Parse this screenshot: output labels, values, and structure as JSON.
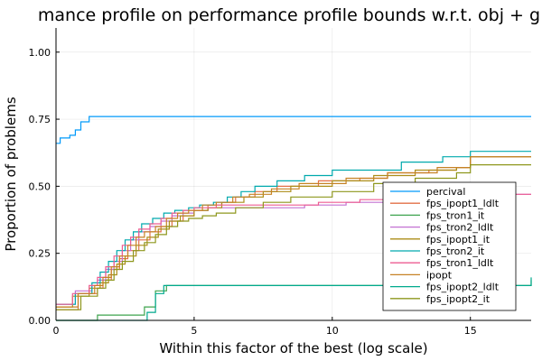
{
  "chart_data": {
    "type": "line",
    "step": true,
    "title": "mance profile on performance profile bounds w.r.t. obj + g",
    "xlabel": "Within this factor of the best (log scale)",
    "ylabel": "Proportion of problems",
    "xlim": [
      0,
      17.2
    ],
    "ylim": [
      0,
      1.09
    ],
    "x_ticks": [
      0,
      5,
      10,
      15
    ],
    "x_tick_labels": [
      "0",
      "5",
      "10",
      "15"
    ],
    "y_ticks": [
      0,
      0.25,
      0.5,
      0.75,
      1.0
    ],
    "y_tick_labels": [
      "0.00",
      "0.25",
      "0.50",
      "0.75",
      "1.00"
    ],
    "grid": true,
    "legend_position": "bottom-right",
    "series": [
      {
        "name": "percival",
        "color": "#009AFA",
        "points": [
          [
            0,
            0.66
          ],
          [
            0.15,
            0.68
          ],
          [
            0.5,
            0.69
          ],
          [
            0.7,
            0.71
          ],
          [
            0.9,
            0.74
          ],
          [
            1.2,
            0.76
          ],
          [
            17.2,
            0.76
          ]
        ]
      },
      {
        "name": "fps_ipopt1_ldlt",
        "color": "#E36F47",
        "points": [
          [
            0,
            0.04
          ],
          [
            0.8,
            0.1
          ],
          [
            1.5,
            0.12
          ],
          [
            1.7,
            0.15
          ],
          [
            2.0,
            0.19
          ],
          [
            2.3,
            0.23
          ],
          [
            2.6,
            0.26
          ],
          [
            3.0,
            0.3
          ],
          [
            3.4,
            0.33
          ],
          [
            3.8,
            0.35
          ],
          [
            4.2,
            0.37
          ],
          [
            4.6,
            0.39
          ],
          [
            5.0,
            0.41
          ],
          [
            5.5,
            0.43
          ],
          [
            6.0,
            0.44
          ],
          [
            6.5,
            0.46
          ],
          [
            7.2,
            0.48
          ],
          [
            8.0,
            0.5
          ],
          [
            9.5,
            0.52
          ],
          [
            11.0,
            0.53
          ],
          [
            12.0,
            0.55
          ],
          [
            13.5,
            0.56
          ],
          [
            14.5,
            0.57
          ],
          [
            15.0,
            0.61
          ],
          [
            17.2,
            0.61
          ]
        ]
      },
      {
        "name": "fps_tron1_it",
        "color": "#3EA44E",
        "points": [
          [
            0,
            0
          ],
          [
            1.5,
            0.02
          ],
          [
            3.2,
            0.05
          ],
          [
            3.6,
            0.11
          ],
          [
            4.0,
            0.13
          ],
          [
            17.2,
            0.15
          ]
        ]
      },
      {
        "name": "fps_tron2_ldlt",
        "color": "#C371D2",
        "points": [
          [
            0,
            0.06
          ],
          [
            0.7,
            0.11
          ],
          [
            1.3,
            0.13
          ],
          [
            1.5,
            0.15
          ],
          [
            1.8,
            0.19
          ],
          [
            2.1,
            0.22
          ],
          [
            2.4,
            0.26
          ],
          [
            2.7,
            0.3
          ],
          [
            3.0,
            0.33
          ],
          [
            3.4,
            0.35
          ],
          [
            3.8,
            0.37
          ],
          [
            4.2,
            0.39
          ],
          [
            4.6,
            0.4
          ],
          [
            5.0,
            0.41
          ],
          [
            5.5,
            0.42
          ],
          [
            6.5,
            0.42
          ],
          [
            8.0,
            0.42
          ],
          [
            9.0,
            0.43
          ],
          [
            10.5,
            0.44
          ],
          [
            12.0,
            0.45
          ],
          [
            13.5,
            0.46
          ],
          [
            15.0,
            0.47
          ],
          [
            17.2,
            0.47
          ]
        ]
      },
      {
        "name": "fps_ipopt1_it",
        "color": "#AC8D18",
        "points": [
          [
            0,
            0.05
          ],
          [
            0.6,
            0.09
          ],
          [
            1.2,
            0.12
          ],
          [
            1.6,
            0.14
          ],
          [
            1.9,
            0.17
          ],
          [
            2.2,
            0.21
          ],
          [
            2.5,
            0.24
          ],
          [
            2.9,
            0.28
          ],
          [
            3.3,
            0.31
          ],
          [
            3.7,
            0.34
          ],
          [
            4.1,
            0.37
          ],
          [
            4.5,
            0.39
          ],
          [
            5.0,
            0.41
          ],
          [
            5.5,
            0.42
          ],
          [
            6.0,
            0.44
          ],
          [
            6.8,
            0.46
          ],
          [
            7.5,
            0.48
          ],
          [
            8.5,
            0.5
          ],
          [
            10.0,
            0.52
          ],
          [
            11.5,
            0.54
          ],
          [
            13.0,
            0.56
          ],
          [
            14.5,
            0.57
          ],
          [
            15.0,
            0.61
          ],
          [
            17.2,
            0.61
          ]
        ]
      },
      {
        "name": "fps_tron2_it",
        "color": "#00A9AD",
        "points": [
          [
            0,
            0.06
          ],
          [
            0.7,
            0.1
          ],
          [
            1.3,
            0.14
          ],
          [
            1.6,
            0.18
          ],
          [
            1.9,
            0.22
          ],
          [
            2.2,
            0.26
          ],
          [
            2.5,
            0.3
          ],
          [
            2.8,
            0.33
          ],
          [
            3.1,
            0.36
          ],
          [
            3.5,
            0.38
          ],
          [
            3.9,
            0.4
          ],
          [
            4.3,
            0.41
          ],
          [
            4.8,
            0.42
          ],
          [
            5.2,
            0.43
          ],
          [
            5.7,
            0.44
          ],
          [
            6.2,
            0.46
          ],
          [
            6.7,
            0.48
          ],
          [
            7.2,
            0.5
          ],
          [
            8.0,
            0.52
          ],
          [
            9.0,
            0.54
          ],
          [
            10.0,
            0.56
          ],
          [
            12.5,
            0.59
          ],
          [
            14.0,
            0.61
          ],
          [
            15.0,
            0.63
          ],
          [
            17.2,
            0.63
          ]
        ]
      },
      {
        "name": "fps_tron1_ldlt",
        "color": "#ED5D92",
        "points": [
          [
            0,
            0.06
          ],
          [
            0.6,
            0.1
          ],
          [
            1.2,
            0.13
          ],
          [
            1.5,
            0.16
          ],
          [
            1.8,
            0.2
          ],
          [
            2.1,
            0.24
          ],
          [
            2.4,
            0.28
          ],
          [
            2.7,
            0.31
          ],
          [
            3.0,
            0.34
          ],
          [
            3.4,
            0.36
          ],
          [
            3.8,
            0.38
          ],
          [
            4.2,
            0.4
          ],
          [
            4.6,
            0.41
          ],
          [
            5.0,
            0.42
          ],
          [
            5.8,
            0.43
          ],
          [
            6.5,
            0.43
          ],
          [
            8.0,
            0.43
          ],
          [
            9.5,
            0.44
          ],
          [
            11.0,
            0.45
          ],
          [
            12.5,
            0.46
          ],
          [
            14.0,
            0.46
          ],
          [
            15.0,
            0.47
          ],
          [
            17.2,
            0.47
          ]
        ]
      },
      {
        "name": "ipopt",
        "color": "#C68225",
        "points": [
          [
            0,
            0.05
          ],
          [
            0.8,
            0.1
          ],
          [
            1.4,
            0.13
          ],
          [
            1.7,
            0.16
          ],
          [
            2.0,
            0.2
          ],
          [
            2.3,
            0.24
          ],
          [
            2.6,
            0.28
          ],
          [
            2.9,
            0.31
          ],
          [
            3.2,
            0.33
          ],
          [
            3.6,
            0.35
          ],
          [
            4.0,
            0.38
          ],
          [
            4.4,
            0.4
          ],
          [
            4.8,
            0.41
          ],
          [
            5.3,
            0.43
          ],
          [
            5.8,
            0.44
          ],
          [
            6.4,
            0.46
          ],
          [
            7.0,
            0.47
          ],
          [
            7.8,
            0.49
          ],
          [
            8.8,
            0.51
          ],
          [
            10.5,
            0.53
          ],
          [
            12.0,
            0.55
          ],
          [
            13.8,
            0.57
          ],
          [
            15.0,
            0.61
          ],
          [
            17.2,
            0.61
          ]
        ]
      },
      {
        "name": "fps_ipopt2_ldlt",
        "color": "#00A98D",
        "points": [
          [
            0,
            0
          ],
          [
            1.0,
            0
          ],
          [
            3.3,
            0.03
          ],
          [
            3.6,
            0.1
          ],
          [
            3.9,
            0.13
          ],
          [
            17.2,
            0.16
          ]
        ]
      },
      {
        "name": "fps_ipopt2_it",
        "color": "#8E971D",
        "points": [
          [
            0,
            0.04
          ],
          [
            0.9,
            0.09
          ],
          [
            1.5,
            0.12
          ],
          [
            1.8,
            0.15
          ],
          [
            2.1,
            0.19
          ],
          [
            2.4,
            0.22
          ],
          [
            2.8,
            0.26
          ],
          [
            3.2,
            0.29
          ],
          [
            3.6,
            0.32
          ],
          [
            4.0,
            0.35
          ],
          [
            4.4,
            0.37
          ],
          [
            4.8,
            0.38
          ],
          [
            5.3,
            0.39
          ],
          [
            5.8,
            0.4
          ],
          [
            6.5,
            0.42
          ],
          [
            7.5,
            0.44
          ],
          [
            8.5,
            0.46
          ],
          [
            10.0,
            0.48
          ],
          [
            11.5,
            0.51
          ],
          [
            13.0,
            0.53
          ],
          [
            14.5,
            0.55
          ],
          [
            15.0,
            0.58
          ],
          [
            17.2,
            0.58
          ]
        ]
      }
    ]
  }
}
